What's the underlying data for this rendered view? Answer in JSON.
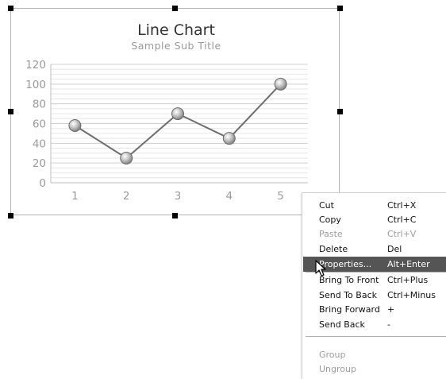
{
  "chart": {
    "title": "Line Chart",
    "subtitle": "Sample Sub Title"
  },
  "chart_data": {
    "type": "line",
    "title": "Line Chart",
    "subtitle": "Sample Sub Title",
    "categories": [
      "1",
      "2",
      "3",
      "4",
      "5"
    ],
    "series": [
      {
        "values": [
          58,
          25,
          70,
          45,
          100
        ]
      }
    ],
    "y_ticks": [
      "0",
      "20",
      "40",
      "60",
      "80",
      "100",
      "120"
    ],
    "ylim": [
      0,
      120
    ],
    "grid": true,
    "line_color": "#6e6e6e",
    "marker_color": "#9a9a9a"
  },
  "context_menu": {
    "groups": [
      [
        {
          "label": "Cut",
          "shortcut": "Ctrl+X",
          "enabled": true
        },
        {
          "label": "Copy",
          "shortcut": "Ctrl+C",
          "enabled": true
        },
        {
          "label": "Paste",
          "shortcut": "Ctrl+V",
          "enabled": false
        },
        {
          "label": "Delete",
          "shortcut": "Del",
          "enabled": true
        },
        {
          "label": "Properties...",
          "shortcut": "Alt+Enter",
          "enabled": true,
          "highlighted": true
        }
      ],
      [
        {
          "label": "Bring To Front",
          "shortcut": "Ctrl+Plus",
          "enabled": true
        },
        {
          "label": "Send To Back",
          "shortcut": "Ctrl+Minus",
          "enabled": true
        },
        {
          "label": "Bring Forward",
          "shortcut": "+",
          "enabled": true
        },
        {
          "label": "Send Back",
          "shortcut": "-",
          "enabled": true
        }
      ],
      [
        {
          "label": "Group",
          "shortcut": "",
          "enabled": false
        },
        {
          "label": "Ungroup",
          "shortcut": "",
          "enabled": false
        }
      ]
    ]
  },
  "colors": {
    "highlight_bg": "#555555",
    "highlight_text": "#ffffff",
    "disabled_text": "#9c9c9c",
    "gridline": "#d9d9d9"
  },
  "icons": {
    "cursor": "arrow-cursor-icon",
    "selection_handle": "selection-handle"
  }
}
